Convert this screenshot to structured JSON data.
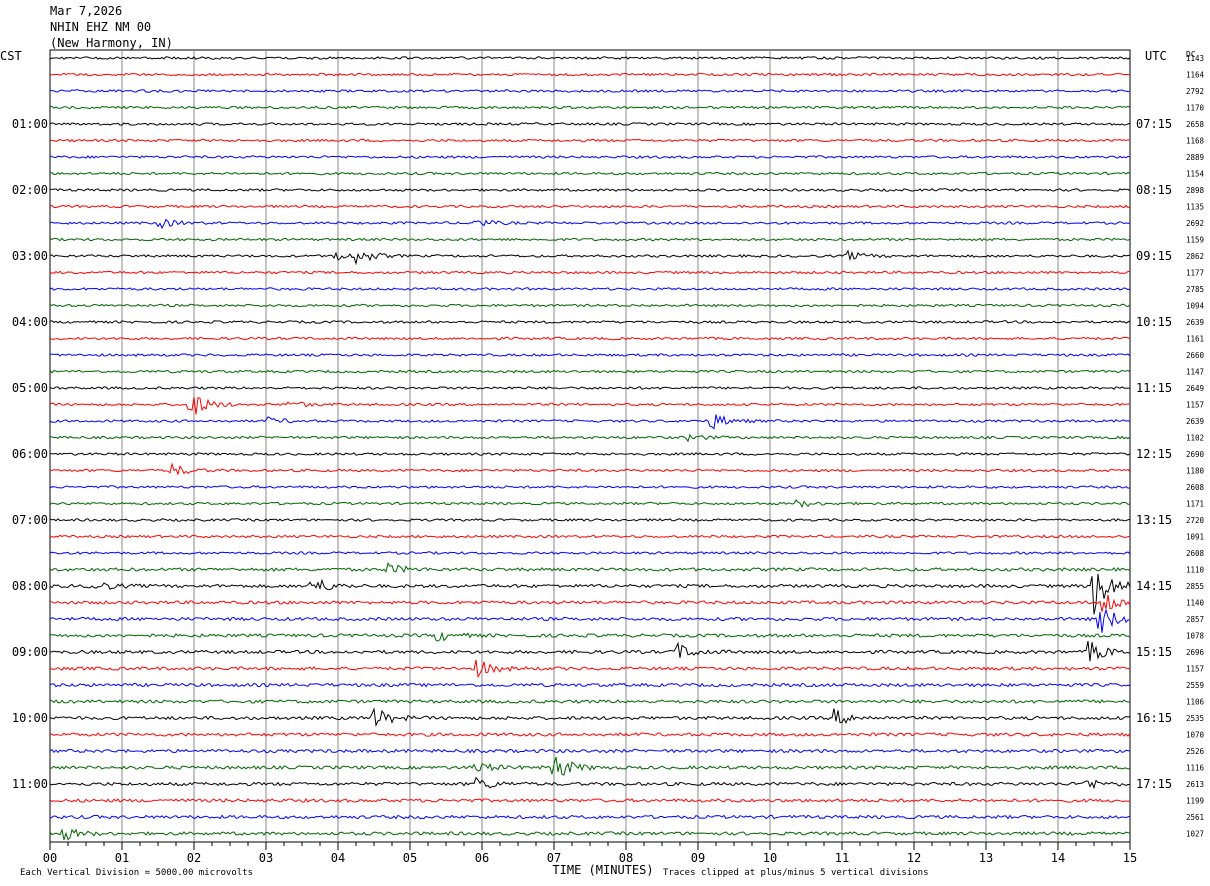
{
  "header": {
    "date": "Mar 7,2026",
    "station": "NHIN EHZ NM 00",
    "location": "(New Harmony, IN)"
  },
  "left_tz": "CST",
  "right_tz": "UTC",
  "dc_label": "DC",
  "footer": {
    "scale_note": "Each Vertical Division = 5000.00 microvolts",
    "xlabel": "TIME (MINUTES)",
    "clip_note": "Traces clipped at plus/minus 5 vertical divisions"
  },
  "chart_data": {
    "type": "line",
    "title": "NHIN EHZ NM 00",
    "xlabel": "TIME (MINUTES)",
    "xlim": [
      0,
      15
    ],
    "x_ticks": [
      "00",
      "01",
      "02",
      "03",
      "04",
      "05",
      "06",
      "07",
      "08",
      "09",
      "10",
      "11",
      "12",
      "13",
      "14",
      "15"
    ],
    "trace_colors": [
      "#000000",
      "#ff0000",
      "#0000ff",
      "#006400"
    ],
    "rows_per_hour": 4,
    "left_hour_labels": [
      "01:00",
      "02:00",
      "03:00",
      "04:00",
      "05:00",
      "06:00",
      "07:00",
      "08:00",
      "09:00",
      "10:00",
      "11:00"
    ],
    "right_hour_labels": [
      "07:15",
      "08:15",
      "09:15",
      "10:15",
      "11:15",
      "12:15",
      "13:15",
      "14:15",
      "15:15",
      "16:15",
      "17:15"
    ],
    "dc_offsets": [
      "1143",
      "1164",
      "2792",
      "1170",
      "2658",
      "1168",
      "2889",
      "1154",
      "2898",
      "1135",
      "2692",
      "1159",
      "2862",
      "1177",
      "2785",
      "1094",
      "2639",
      "1161",
      "2660",
      "1147",
      "2649",
      "1157",
      "2639",
      "1102",
      "2690",
      "1180",
      "2608",
      "1171",
      "2720",
      "1091",
      "2608",
      "1110",
      "2855",
      "1140",
      "2857",
      "1078",
      "2696",
      "1157",
      "2559",
      "1106",
      "2535",
      "1070",
      "2526",
      "1116",
      "2613",
      "1199",
      "2561",
      "1027"
    ],
    "events": [
      {
        "row": 12,
        "minute": 3.95,
        "amp": 5
      },
      {
        "row": 12,
        "minute": 4.3,
        "amp": 6
      },
      {
        "row": 12,
        "minute": 11.1,
        "amp": 4
      },
      {
        "row": 10,
        "minute": 1.55,
        "amp": 4
      },
      {
        "row": 10,
        "minute": 5.9,
        "amp": 4
      },
      {
        "row": 21,
        "minute": 1.95,
        "amp": 14
      },
      {
        "row": 21,
        "minute": 3.35,
        "amp": 3
      },
      {
        "row": 22,
        "minute": 9.2,
        "amp": 8
      },
      {
        "row": 22,
        "minute": 3.05,
        "amp": 3
      },
      {
        "row": 23,
        "minute": 8.9,
        "amp": 3
      },
      {
        "row": 25,
        "minute": 1.7,
        "amp": 6
      },
      {
        "row": 27,
        "minute": 10.4,
        "amp": 3
      },
      {
        "row": 31,
        "minute": 4.7,
        "amp": 5
      },
      {
        "row": 32,
        "minute": 0.6,
        "amp": 6
      },
      {
        "row": 32,
        "minute": 3.65,
        "amp": 9
      },
      {
        "row": 32,
        "minute": 14.5,
        "amp": 28
      },
      {
        "row": 33,
        "minute": 14.65,
        "amp": 12
      },
      {
        "row": 34,
        "minute": 14.6,
        "amp": 14
      },
      {
        "row": 35,
        "minute": 5.4,
        "amp": 5
      },
      {
        "row": 36,
        "minute": 8.7,
        "amp": 9
      },
      {
        "row": 36,
        "minute": 14.45,
        "amp": 10
      },
      {
        "row": 37,
        "minute": 5.95,
        "amp": 8
      },
      {
        "row": 40,
        "minute": 4.5,
        "amp": 10
      },
      {
        "row": 40,
        "minute": 10.9,
        "amp": 8
      },
      {
        "row": 43,
        "minute": 5.9,
        "amp": 6
      },
      {
        "row": 43,
        "minute": 7.0,
        "amp": 14
      },
      {
        "row": 44,
        "minute": 5.95,
        "amp": 6
      },
      {
        "row": 44,
        "minute": 14.4,
        "amp": 5
      },
      {
        "row": 47,
        "minute": 0.2,
        "amp": 6
      }
    ]
  }
}
